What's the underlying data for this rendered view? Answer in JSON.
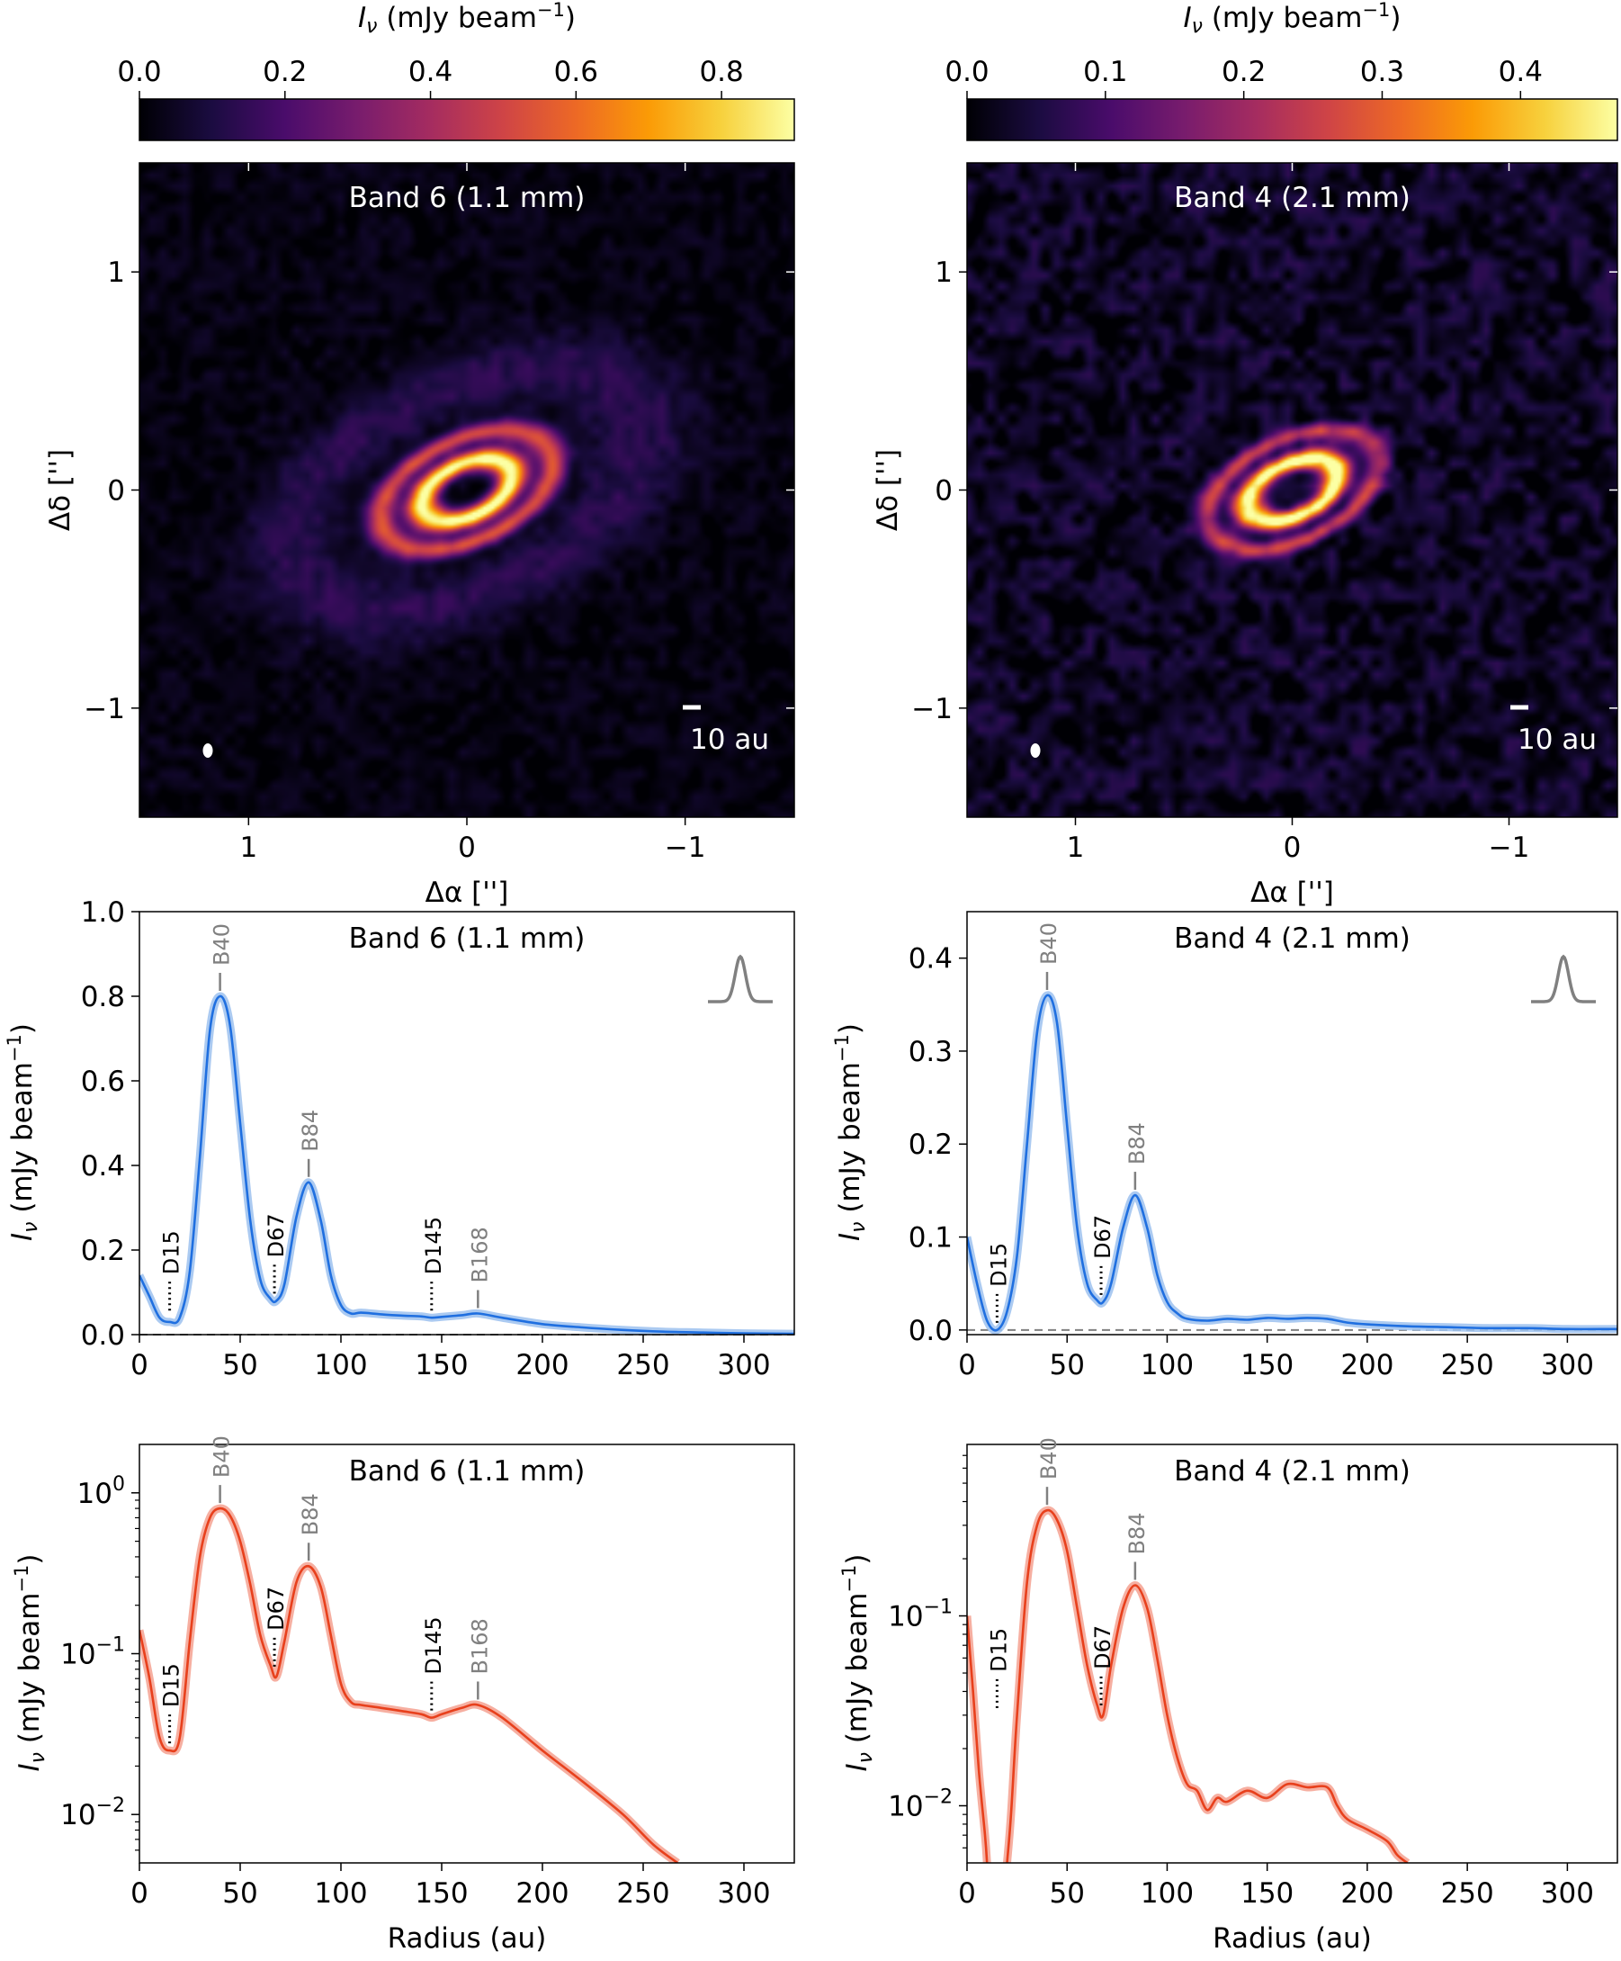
{
  "colors": {
    "blue": "#1f6fe0",
    "blue_band": "#9cc1ef",
    "red": "#e8401c",
    "red_band": "#f5a190",
    "gray": "#808080",
    "black": "#000000"
  },
  "cmap_stops": [
    "#000004",
    "#1b0c41",
    "#4a0c6b",
    "#781c6d",
    "#a52c60",
    "#cf4446",
    "#ed6925",
    "#fb9b06",
    "#f7d13d",
    "#fcffa4"
  ],
  "images": [
    {
      "id": "b6",
      "title": "Band 6 (1.1 mm)",
      "colorbar_label_pre": "I",
      "colorbar_label_sub": "ν",
      "colorbar_label_post": " (mJy beam",
      "colorbar_label_sup": "−1",
      "colorbar_label_end": ")",
      "colorbar_ticks": [
        {
          "v": 0.0,
          "t": "0.0"
        },
        {
          "v": 0.2,
          "t": "0.2"
        },
        {
          "v": 0.4,
          "t": "0.4"
        },
        {
          "v": 0.6,
          "t": "0.6"
        },
        {
          "v": 0.8,
          "t": "0.8"
        }
      ],
      "colorbar_range": [
        0.0,
        0.9
      ],
      "y_ticks": [
        {
          "v": 1,
          "t": "1"
        },
        {
          "v": 0,
          "t": "0"
        },
        {
          "v": -1,
          "t": "−1"
        }
      ],
      "x_ticks": [
        {
          "v": 1,
          "t": "1"
        },
        {
          "v": 0,
          "t": "0"
        },
        {
          "v": -1,
          "t": "−1"
        }
      ],
      "ylabel": "Δδ ['']",
      "xlabel": "Δα ['']",
      "scalebar_label": "10 au",
      "extent": 1.5,
      "rings": [
        {
          "r": 0.22,
          "w": 0.055,
          "amp": 1.0
        },
        {
          "r": 0.42,
          "w": 0.05,
          "amp": 0.55
        },
        {
          "r": 0.85,
          "w": 0.18,
          "amp": 0.12
        }
      ],
      "noise": 0.1
    },
    {
      "id": "b4",
      "title": "Band 4 (2.1 mm)",
      "colorbar_label_pre": "I",
      "colorbar_label_sub": "ν",
      "colorbar_label_post": " (mJy beam",
      "colorbar_label_sup": "−1",
      "colorbar_label_end": ")",
      "colorbar_ticks": [
        {
          "v": 0.0,
          "t": "0.0"
        },
        {
          "v": 0.1,
          "t": "0.1"
        },
        {
          "v": 0.2,
          "t": "0.2"
        },
        {
          "v": 0.3,
          "t": "0.3"
        },
        {
          "v": 0.4,
          "t": "0.4"
        }
      ],
      "colorbar_range": [
        0.0,
        0.47
      ],
      "y_ticks": [
        {
          "v": 1,
          "t": "1"
        },
        {
          "v": 0,
          "t": "0"
        },
        {
          "v": -1,
          "t": "−1"
        }
      ],
      "x_ticks": [
        {
          "v": 1,
          "t": "1"
        },
        {
          "v": 0,
          "t": "0"
        },
        {
          "v": -1,
          "t": "−1"
        }
      ],
      "ylabel": "Δδ ['']",
      "xlabel": "Δα ['']",
      "scalebar_label": "10 au",
      "extent": 1.5,
      "rings": [
        {
          "r": 0.22,
          "w": 0.05,
          "amp": 1.0
        },
        {
          "r": 0.42,
          "w": 0.045,
          "amp": 0.45
        }
      ],
      "noise": 0.22
    }
  ],
  "chart_data": [
    {
      "type": "line",
      "id": "lin6",
      "title": "Band 6 (1.1 mm)",
      "scale": "linear",
      "xlim": [
        0,
        325
      ],
      "ylim": [
        0.0,
        1.0
      ],
      "x_ticks": [
        0,
        50,
        100,
        150,
        200,
        250,
        300
      ],
      "y_ticks": [
        {
          "v": 0.0,
          "t": "0.0"
        },
        {
          "v": 0.2,
          "t": "0.2"
        },
        {
          "v": 0.4,
          "t": "0.4"
        },
        {
          "v": 0.6,
          "t": "0.6"
        },
        {
          "v": 0.8,
          "t": "0.8"
        },
        {
          "v": 1.0,
          "t": "1.0"
        }
      ],
      "ylabel": "I_ν (mJy beam⁻¹)",
      "zero_line": true,
      "beam_icon": true,
      "x": [
        0,
        5,
        10,
        15,
        20,
        25,
        30,
        35,
        40,
        45,
        50,
        55,
        60,
        65,
        68,
        72,
        78,
        84,
        90,
        95,
        100,
        105,
        110,
        120,
        130,
        140,
        145,
        150,
        160,
        168,
        180,
        200,
        220,
        240,
        260,
        280,
        300,
        325
      ],
      "y": [
        0.14,
        0.09,
        0.04,
        0.03,
        0.04,
        0.15,
        0.42,
        0.72,
        0.8,
        0.73,
        0.5,
        0.27,
        0.13,
        0.085,
        0.08,
        0.12,
        0.28,
        0.36,
        0.27,
        0.14,
        0.07,
        0.05,
        0.052,
        0.048,
        0.045,
        0.043,
        0.04,
        0.042,
        0.046,
        0.05,
        0.04,
        0.025,
        0.017,
        0.011,
        0.007,
        0.005,
        0.003,
        0.002
      ],
      "annotations": [
        {
          "label": "D15",
          "x": 15,
          "kind": "dip",
          "ypt": 0.04
        },
        {
          "label": "B40",
          "x": 40,
          "kind": "peak",
          "ypt": 0.8
        },
        {
          "label": "D67",
          "x": 67,
          "kind": "dip",
          "ypt": 0.08
        },
        {
          "label": "B84",
          "x": 84,
          "kind": "peak",
          "ypt": 0.36
        },
        {
          "label": "D145",
          "x": 145,
          "kind": "dip",
          "ypt": 0.04
        },
        {
          "label": "B168",
          "x": 168,
          "kind": "peak",
          "ypt": 0.05
        }
      ]
    },
    {
      "type": "line",
      "id": "lin4",
      "title": "Band 4 (2.1 mm)",
      "scale": "linear",
      "xlim": [
        0,
        325
      ],
      "ylim": [
        -0.005,
        0.45
      ],
      "x_ticks": [
        0,
        50,
        100,
        150,
        200,
        250,
        300
      ],
      "y_ticks": [
        {
          "v": 0.0,
          "t": "0.0"
        },
        {
          "v": 0.1,
          "t": "0.1"
        },
        {
          "v": 0.2,
          "t": "0.2"
        },
        {
          "v": 0.3,
          "t": "0.3"
        },
        {
          "v": 0.4,
          "t": "0.4"
        }
      ],
      "ylabel": "I_ν (mJy beam⁻¹)",
      "zero_line": true,
      "beam_icon": true,
      "x": [
        0,
        5,
        10,
        15,
        20,
        25,
        30,
        35,
        40,
        45,
        50,
        55,
        60,
        65,
        68,
        72,
        78,
        84,
        90,
        95,
        100,
        105,
        110,
        120,
        130,
        140,
        150,
        160,
        170,
        180,
        190,
        200,
        220,
        240,
        260,
        280,
        300,
        325
      ],
      "y": [
        0.1,
        0.05,
        0.01,
        0.0,
        0.02,
        0.08,
        0.2,
        0.32,
        0.36,
        0.33,
        0.22,
        0.11,
        0.05,
        0.032,
        0.03,
        0.05,
        0.11,
        0.145,
        0.11,
        0.06,
        0.03,
        0.018,
        0.012,
        0.01,
        0.012,
        0.011,
        0.013,
        0.012,
        0.013,
        0.012,
        0.008,
        0.006,
        0.004,
        0.003,
        0.002,
        0.002,
        0.001,
        0.001
      ],
      "annotations": [
        {
          "label": "D15",
          "x": 15,
          "kind": "dip",
          "ypt": 0.0
        },
        {
          "label": "B40",
          "x": 40,
          "kind": "peak",
          "ypt": 0.36
        },
        {
          "label": "D67",
          "x": 67,
          "kind": "dip",
          "ypt": 0.03
        },
        {
          "label": "B84",
          "x": 84,
          "kind": "peak",
          "ypt": 0.145
        }
      ]
    },
    {
      "type": "line",
      "id": "log6",
      "title": "Band 6 (1.1 mm)",
      "scale": "log",
      "xlim": [
        0,
        325
      ],
      "ylim": [
        0.005,
        2.0
      ],
      "x_ticks": [
        0,
        50,
        100,
        150,
        200,
        250,
        300
      ],
      "y_ticks": [
        {
          "v": 0.01,
          "t": "10",
          "e": "−2"
        },
        {
          "v": 0.1,
          "t": "10",
          "e": "−1"
        },
        {
          "v": 1.0,
          "t": "10",
          "e": "0"
        }
      ],
      "ylabel": "I_ν (mJy beam⁻¹)",
      "xlabel": "Radius (au)",
      "x": [
        0,
        5,
        10,
        15,
        20,
        25,
        30,
        35,
        40,
        45,
        50,
        55,
        60,
        65,
        68,
        72,
        78,
        84,
        90,
        95,
        100,
        105,
        110,
        120,
        130,
        140,
        145,
        150,
        160,
        168,
        180,
        200,
        220,
        240,
        255,
        267
      ],
      "y": [
        0.14,
        0.07,
        0.03,
        0.025,
        0.03,
        0.12,
        0.4,
        0.7,
        0.8,
        0.72,
        0.5,
        0.27,
        0.13,
        0.085,
        0.072,
        0.12,
        0.28,
        0.35,
        0.26,
        0.13,
        0.065,
        0.05,
        0.048,
        0.046,
        0.044,
        0.042,
        0.04,
        0.042,
        0.046,
        0.048,
        0.04,
        0.025,
        0.016,
        0.01,
        0.0065,
        0.005
      ],
      "annotations": [
        {
          "label": "D15",
          "x": 15,
          "kind": "dip",
          "ypt": 0.025
        },
        {
          "label": "B40",
          "x": 40,
          "kind": "peak",
          "ypt": 0.8
        },
        {
          "label": "D67",
          "x": 67,
          "kind": "dip",
          "ypt": 0.075
        },
        {
          "label": "B84",
          "x": 84,
          "kind": "peak",
          "ypt": 0.35
        },
        {
          "label": "D145",
          "x": 145,
          "kind": "dip",
          "ypt": 0.04
        },
        {
          "label": "B168",
          "x": 168,
          "kind": "peak",
          "ypt": 0.048
        }
      ]
    },
    {
      "type": "line",
      "id": "log4",
      "title": "Band 4 (2.1 mm)",
      "scale": "log",
      "xlim": [
        0,
        325
      ],
      "ylim": [
        0.005,
        0.8
      ],
      "x_ticks": [
        0,
        50,
        100,
        150,
        200,
        250,
        300
      ],
      "y_ticks": [
        {
          "v": 0.01,
          "t": "10",
          "e": "−2"
        },
        {
          "v": 0.1,
          "t": "10",
          "e": "−1"
        }
      ],
      "ylabel": "I_ν (mJy beam⁻¹)",
      "xlabel": "Radius (au)",
      "segments": [
        {
          "x": [
            0,
            3,
            6,
            9,
            10
          ],
          "y": [
            0.1,
            0.04,
            0.015,
            0.007,
            0.005
          ]
        },
        {
          "x": [
            20,
            22,
            25,
            30,
            35,
            40,
            45,
            50,
            55,
            60,
            65,
            68,
            72,
            78,
            84,
            90,
            95,
            100,
            105,
            110,
            115,
            120,
            125,
            130,
            140,
            150,
            160,
            170,
            180,
            185,
            190,
            200,
            210,
            215,
            220
          ],
          "y": [
            0.005,
            0.009,
            0.03,
            0.15,
            0.3,
            0.36,
            0.32,
            0.22,
            0.11,
            0.055,
            0.034,
            0.03,
            0.055,
            0.11,
            0.145,
            0.11,
            0.06,
            0.03,
            0.018,
            0.013,
            0.012,
            0.0095,
            0.011,
            0.0105,
            0.012,
            0.011,
            0.013,
            0.0125,
            0.0125,
            0.01,
            0.0085,
            0.0075,
            0.0065,
            0.0055,
            0.005
          ]
        }
      ],
      "annotations": [
        {
          "label": "D15",
          "x": 15,
          "kind": "dip",
          "ypt": 0.03
        },
        {
          "label": "B40",
          "x": 40,
          "kind": "peak",
          "ypt": 0.36
        },
        {
          "label": "D67",
          "x": 67,
          "kind": "dip",
          "ypt": 0.031
        },
        {
          "label": "B84",
          "x": 84,
          "kind": "peak",
          "ypt": 0.145
        }
      ]
    }
  ],
  "axis_labels": {
    "xlabel": "Radius (au)",
    "ylabel_pre": "I",
    "ylabel_sub": "ν",
    "ylabel_post": " (mJy beam",
    "ylabel_sup": "−1",
    "ylabel_end": ")"
  }
}
